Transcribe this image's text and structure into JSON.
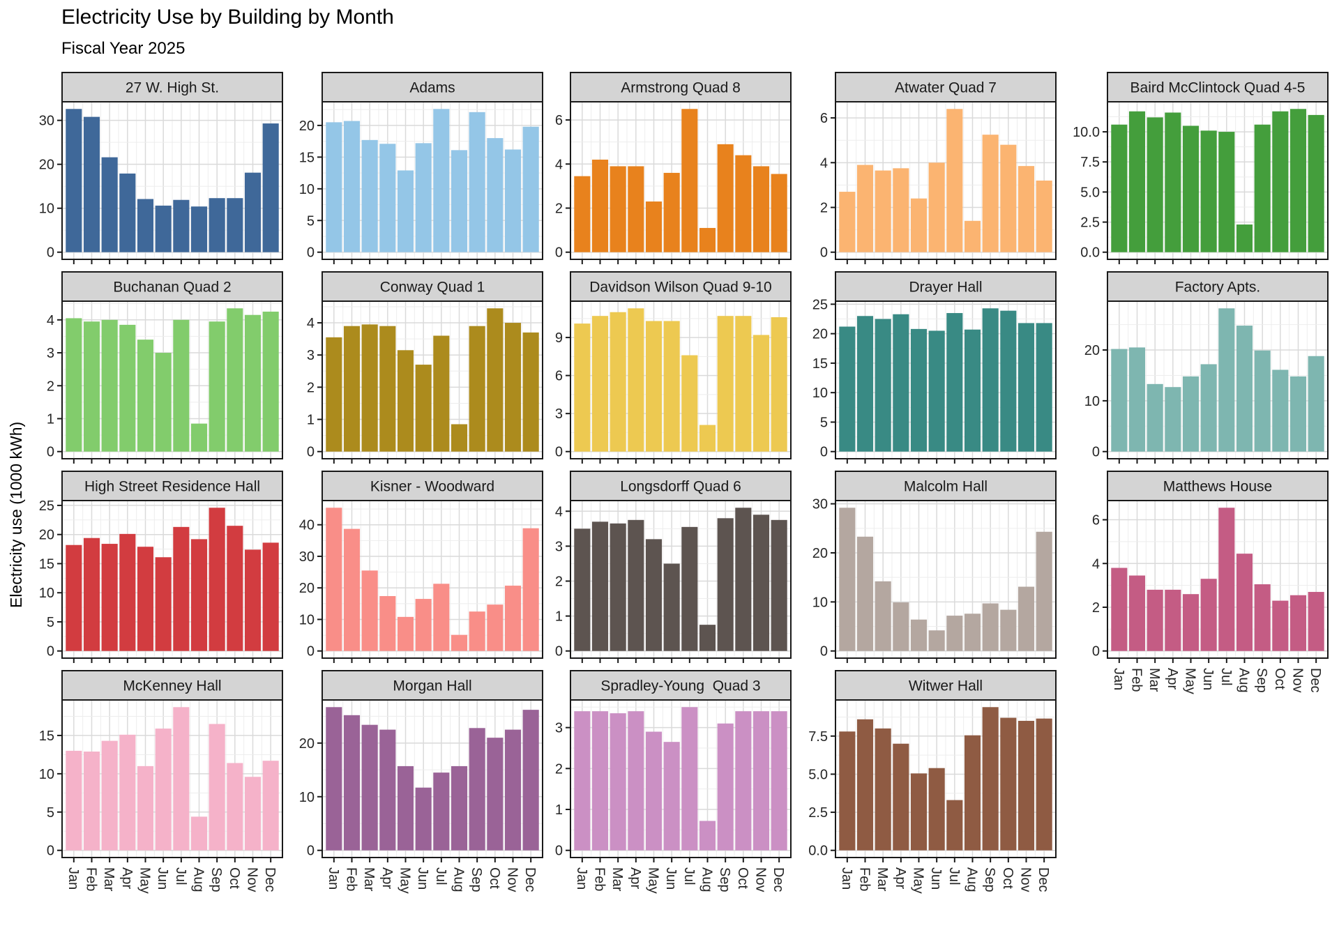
{
  "title": "Electricity Use by Building by Month",
  "subtitle": "Fiscal Year 2025",
  "y_axis_label": "Electricity use (1000 kWh)",
  "chart_data": {
    "type": "bar",
    "title": "Electricity Use by Building by Month",
    "subtitle": "Fiscal Year 2025",
    "ylabel": "Electricity use (1000 kWh)",
    "xlabel": "",
    "grid": true,
    "legend": "none",
    "facet_columns": 5,
    "categories": [
      "Jan",
      "Feb",
      "Mar",
      "Apr",
      "May",
      "Jun",
      "Jul",
      "Aug",
      "Sep",
      "Oct",
      "Nov",
      "Dec"
    ],
    "panel_style": {
      "header_fill": "#D4D4D4",
      "border_color": "#1A1A1A",
      "plot_fill": "#FFFFFF",
      "grid_major_color": "#DADADA",
      "grid_minor_color": "#EDEDED",
      "axis_text_color": "#262626"
    },
    "facets": [
      {
        "name": "27 W. High St.",
        "color": "#3F6899",
        "ticks": [
          0,
          10,
          20,
          30
        ],
        "values": [
          32.6,
          30.8,
          21.6,
          17.9,
          12.1,
          10.6,
          11.9,
          10.4,
          12.3,
          12.3,
          18.1,
          29.3
        ]
      },
      {
        "name": "Adams",
        "color": "#94C6E7",
        "ticks": [
          0,
          5,
          10,
          15,
          20
        ],
        "values": [
          20.5,
          20.7,
          17.7,
          17.1,
          12.9,
          17.2,
          22.6,
          16.1,
          22.1,
          18.0,
          16.2,
          19.8
        ]
      },
      {
        "name": "Armstrong Quad 8",
        "color": "#E8821D",
        "ticks": [
          0,
          2,
          4,
          6
        ],
        "values": [
          3.45,
          4.2,
          3.9,
          3.9,
          2.3,
          3.6,
          6.5,
          1.1,
          4.9,
          4.4,
          3.9,
          3.55
        ]
      },
      {
        "name": "Atwater Quad 7",
        "color": "#FBB471",
        "ticks": [
          0,
          2,
          4,
          6
        ],
        "values": [
          2.7,
          3.9,
          3.65,
          3.75,
          2.4,
          4.0,
          6.4,
          1.4,
          5.25,
          4.8,
          3.85,
          3.2
        ]
      },
      {
        "name": "Baird McClintock Quad 4-5",
        "color": "#449E3C",
        "ticks": [
          0,
          2.5,
          5,
          7.5,
          10
        ],
        "tick_labels": [
          "0.0",
          "2.5",
          "5.0",
          "7.5",
          "10.0"
        ],
        "values": [
          10.6,
          11.7,
          11.2,
          11.6,
          10.5,
          10.1,
          10.0,
          2.3,
          10.6,
          11.7,
          11.9,
          11.4
        ]
      },
      {
        "name": "Buchanan Quad 2",
        "color": "#82CC6C",
        "ticks": [
          0,
          1,
          2,
          3,
          4
        ],
        "values": [
          4.05,
          3.95,
          4.0,
          3.85,
          3.4,
          3.0,
          4.0,
          0.85,
          3.95,
          4.35,
          4.15,
          4.25
        ]
      },
      {
        "name": "Conway Quad 1",
        "color": "#AC8B1D",
        "ticks": [
          0,
          1,
          2,
          3,
          4
        ],
        "values": [
          3.55,
          3.9,
          3.95,
          3.9,
          3.15,
          2.7,
          3.6,
          0.85,
          3.9,
          4.45,
          4.0,
          3.7
        ]
      },
      {
        "name": "Davidson Wilson Quad 9-10",
        "color": "#EDC951",
        "ticks": [
          0,
          3,
          6,
          9
        ],
        "values": [
          10.1,
          10.7,
          11.0,
          11.3,
          10.3,
          10.3,
          7.6,
          2.1,
          10.7,
          10.7,
          9.2,
          10.6
        ]
      },
      {
        "name": "Drayer Hall",
        "color": "#398A84",
        "ticks": [
          0,
          5,
          10,
          15,
          20,
          25
        ],
        "values": [
          21.2,
          23.0,
          22.5,
          23.3,
          20.8,
          20.5,
          23.5,
          20.7,
          24.3,
          23.9,
          21.8,
          21.8
        ]
      },
      {
        "name": "Factory Apts.",
        "color": "#7EB6B0",
        "ticks": [
          0,
          10,
          20
        ],
        "values": [
          20.2,
          20.5,
          13.3,
          12.7,
          14.8,
          17.2,
          28.2,
          24.8,
          19.9,
          16.1,
          14.8,
          18.8
        ]
      },
      {
        "name": "High Street Residence Hall",
        "color": "#D23C40",
        "ticks": [
          0,
          5,
          10,
          15,
          20,
          25
        ],
        "values": [
          18.2,
          19.4,
          18.4,
          20.1,
          17.9,
          16.1,
          21.3,
          19.2,
          24.6,
          21.5,
          17.4,
          18.6
        ]
      },
      {
        "name": "Kisner - Woodward",
        "color": "#F98E88",
        "ticks": [
          0,
          10,
          20,
          30,
          40
        ],
        "values": [
          45.4,
          38.7,
          25.5,
          17.4,
          10.8,
          16.5,
          21.3,
          5.1,
          12.5,
          14.7,
          20.7,
          38.9
        ]
      },
      {
        "name": "Longsdorff Quad 6",
        "color": "#5D5450",
        "ticks": [
          0,
          1,
          2,
          3,
          4
        ],
        "values": [
          3.5,
          3.7,
          3.65,
          3.75,
          3.2,
          2.5,
          3.55,
          0.75,
          3.8,
          4.1,
          3.9,
          3.75
        ]
      },
      {
        "name": "Malcolm Hall",
        "color": "#B4A7A0",
        "ticks": [
          0,
          10,
          20,
          30
        ],
        "values": [
          29.2,
          23.3,
          14.2,
          9.9,
          6.4,
          4.2,
          7.2,
          7.6,
          9.7,
          8.4,
          13.1,
          24.3
        ]
      },
      {
        "name": "Matthews House",
        "color": "#C45C84",
        "ticks": [
          0,
          2,
          4,
          6
        ],
        "values": [
          3.8,
          3.45,
          2.8,
          2.8,
          2.6,
          3.3,
          6.55,
          4.45,
          3.05,
          2.3,
          2.55,
          2.7
        ]
      },
      {
        "name": "McKenney Hall",
        "color": "#F5B2C9",
        "ticks": [
          0,
          5,
          10,
          15
        ],
        "values": [
          13.0,
          12.9,
          14.3,
          15.1,
          11.0,
          15.9,
          18.7,
          4.4,
          16.5,
          11.4,
          9.6,
          11.7
        ]
      },
      {
        "name": "Morgan Hall",
        "color": "#9A6397",
        "ticks": [
          0,
          10,
          20
        ],
        "values": [
          26.7,
          25.2,
          23.4,
          22.5,
          15.7,
          11.7,
          14.5,
          15.7,
          22.8,
          21.0,
          22.5,
          26.2
        ]
      },
      {
        "name": "Spradley-Young  Quad 3",
        "color": "#CB90C4",
        "ticks": [
          0,
          1,
          2,
          3
        ],
        "values": [
          3.4,
          3.4,
          3.35,
          3.4,
          2.9,
          2.65,
          3.5,
          0.72,
          3.1,
          3.4,
          3.4,
          3.4
        ]
      },
      {
        "name": "Witwer Hall",
        "color": "#8F5B43",
        "ticks": [
          0,
          2.5,
          5,
          7.5
        ],
        "tick_labels": [
          "0.0",
          "2.5",
          "5.0",
          "7.5"
        ],
        "values": [
          7.8,
          8.6,
          8.0,
          7.0,
          5.05,
          5.4,
          3.3,
          7.55,
          9.4,
          8.7,
          8.5,
          8.65
        ]
      }
    ]
  }
}
